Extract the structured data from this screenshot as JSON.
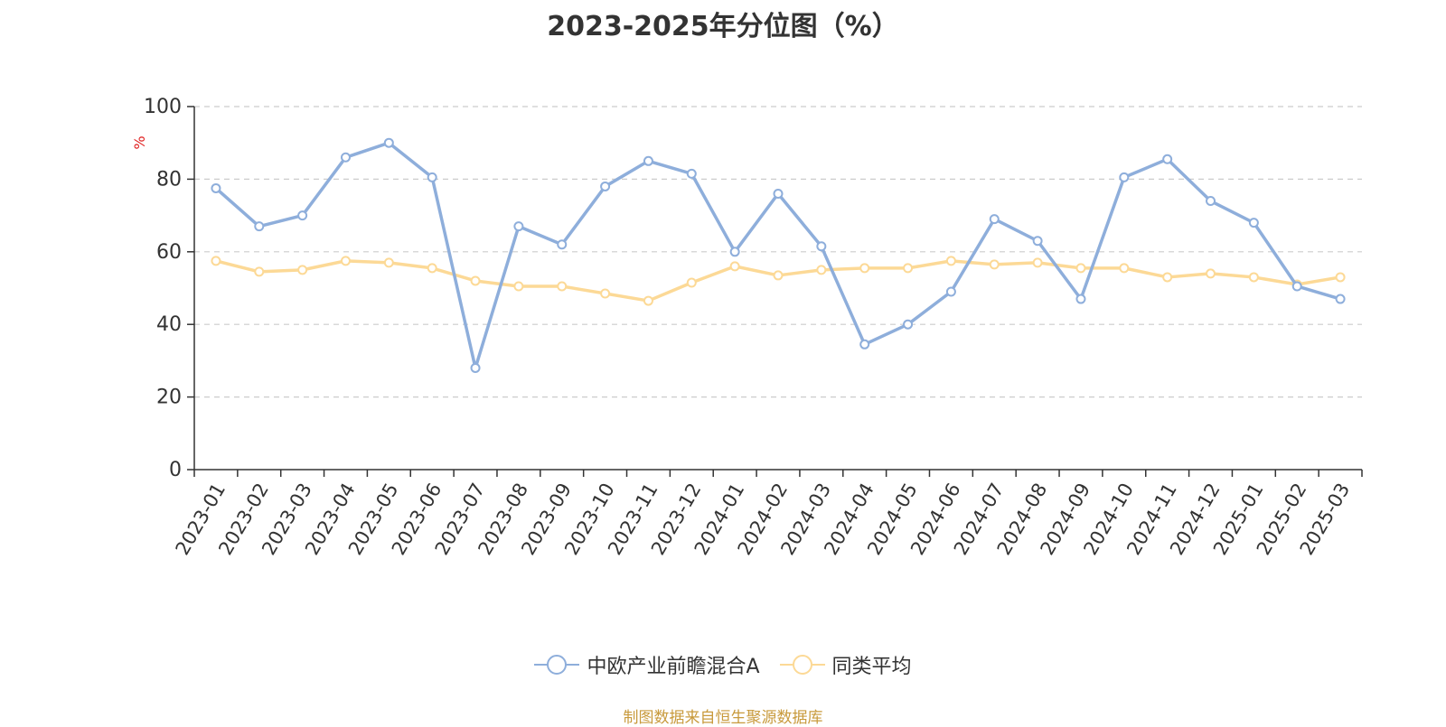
{
  "title": "2023-2025年分位图（%）",
  "source": "制图数据来自恒生聚源数据库",
  "colors": {
    "series1": "#8eaedb",
    "series2": "#fcd996",
    "axis": "#333333",
    "grid": "#cccccc",
    "unit": "#e02020",
    "source": "#c89a3c"
  },
  "chart_data": {
    "type": "line",
    "ylabel": "%",
    "ylim": [
      0,
      100
    ],
    "yticks": [
      0,
      20,
      40,
      60,
      80,
      100
    ],
    "grid": true,
    "legend_position": "bottom",
    "categories": [
      "2023-01",
      "2023-02",
      "2023-03",
      "2023-04",
      "2023-05",
      "2023-06",
      "2023-07",
      "2023-08",
      "2023-09",
      "2023-10",
      "2023-11",
      "2023-12",
      "2024-01",
      "2024-02",
      "2024-03",
      "2024-04",
      "2024-05",
      "2024-06",
      "2024-07",
      "2024-08",
      "2024-09",
      "2024-10",
      "2024-11",
      "2024-12",
      "2025-01",
      "2025-02",
      "2025-03"
    ],
    "series": [
      {
        "name": "中欧产业前瞻混合A",
        "values": [
          77.5,
          67,
          70,
          86,
          90,
          80.5,
          28,
          67,
          62,
          78,
          85,
          81.5,
          60,
          76,
          61.5,
          34.5,
          40,
          49,
          69,
          63,
          47,
          80.5,
          85.5,
          74,
          68,
          50.5,
          47
        ]
      },
      {
        "name": "同类平均",
        "values": [
          57.5,
          54.5,
          55,
          57.5,
          57,
          55.5,
          52,
          50.5,
          50.5,
          48.5,
          46.5,
          51.5,
          56,
          53.5,
          55,
          55.5,
          55.5,
          57.5,
          56.5,
          57,
          55.5,
          55.5,
          53,
          54,
          53,
          51,
          53
        ]
      }
    ]
  }
}
